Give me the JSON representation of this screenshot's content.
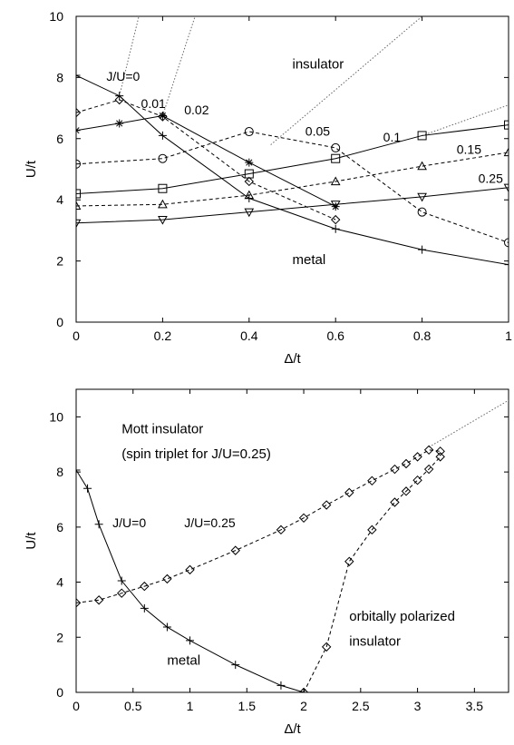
{
  "chart_data": [
    {
      "type": "line",
      "xlabel": "Δ/t",
      "ylabel": "U/t",
      "xlim": [
        0,
        1
      ],
      "ylim": [
        0,
        10
      ],
      "xticks": [
        0,
        0.2,
        0.4,
        0.6,
        0.8,
        1
      ],
      "xtick_labels": [
        "0",
        "0.2",
        "0.4",
        "0.6",
        "0.8",
        "1"
      ],
      "yticks": [
        0,
        2,
        4,
        6,
        8,
        10
      ],
      "ytick_labels": [
        "0",
        "2",
        "4",
        "6",
        "8",
        "10"
      ],
      "grid": false,
      "legend": "none",
      "annotations": [
        {
          "text": "insulator",
          "x": 0.5,
          "y": 8.3
        },
        {
          "text": "metal",
          "x": 0.5,
          "y": 1.9
        }
      ],
      "series": [
        {
          "name": "J/U=0",
          "marker": "plus",
          "dash": "solid",
          "label_x": 0.07,
          "label_y": 7.9,
          "points": [
            [
              0,
              8.07
            ],
            [
              0.1,
              7.4
            ],
            [
              0.2,
              6.1
            ],
            [
              0.4,
              4.05
            ],
            [
              0.6,
              3.05
            ],
            [
              0.8,
              2.37
            ],
            [
              1,
              1.88
            ]
          ]
        },
        {
          "name": "0.01",
          "marker": "diamond",
          "dash": "dashed",
          "label_x": 0.15,
          "label_y": 7.0,
          "points": [
            [
              0,
              6.85
            ],
            [
              0.1,
              7.27
            ],
            [
              0.2,
              6.72
            ],
            [
              0.4,
              4.6
            ],
            [
              0.6,
              3.35
            ]
          ]
        },
        {
          "name": "0.02",
          "marker": "star",
          "dash": "solid",
          "label_x": 0.25,
          "label_y": 6.8,
          "points": [
            [
              0,
              6.27
            ],
            [
              0.1,
              6.5
            ],
            [
              0.2,
              6.75
            ],
            [
              0.4,
              5.22
            ],
            [
              0.6,
              3.78
            ]
          ]
        },
        {
          "name": "0.05",
          "marker": "circle",
          "dash": "dashed",
          "label_x": 0.53,
          "label_y": 6.1,
          "points": [
            [
              0,
              5.17
            ],
            [
              0.2,
              5.35
            ],
            [
              0.4,
              6.23
            ],
            [
              0.6,
              5.7
            ],
            [
              0.8,
              3.6
            ],
            [
              1,
              2.6
            ]
          ]
        },
        {
          "name": "0.1",
          "marker": "square",
          "dash": "solid",
          "label_x": 0.71,
          "label_y": 5.9,
          "points": [
            [
              0,
              4.2
            ],
            [
              0.2,
              4.37
            ],
            [
              0.4,
              4.85
            ],
            [
              0.6,
              5.35
            ],
            [
              0.8,
              6.1
            ],
            [
              1,
              6.45
            ]
          ]
        },
        {
          "name": "0.15",
          "marker": "triangle-up",
          "dash": "dashed",
          "label_x": 0.88,
          "label_y": 5.5,
          "points": [
            [
              0,
              3.8
            ],
            [
              0.2,
              3.85
            ],
            [
              0.4,
              4.15
            ],
            [
              0.6,
              4.6
            ],
            [
              0.8,
              5.1
            ],
            [
              1,
              5.55
            ]
          ]
        },
        {
          "name": "0.25",
          "marker": "triangle-down",
          "dash": "solid",
          "label_x": 0.93,
          "label_y": 4.55,
          "points": [
            [
              0,
              3.24
            ],
            [
              0.2,
              3.35
            ],
            [
              0.4,
              3.6
            ],
            [
              0.6,
              3.85
            ],
            [
              0.8,
              4.1
            ],
            [
              1,
              4.4
            ]
          ]
        }
      ],
      "boundaries": [
        {
          "style": "dotted",
          "points": [
            [
              0.1,
              7.4
            ],
            [
              0.145,
              10
            ]
          ]
        },
        {
          "style": "dotted",
          "points": [
            [
              0.2,
              6.75
            ],
            [
              0.275,
              10
            ]
          ]
        },
        {
          "style": "dotted",
          "points": [
            [
              0.45,
              5.8
            ],
            [
              0.8,
              10
            ]
          ]
        },
        {
          "style": "dotted",
          "points": [
            [
              0.8,
              6.1
            ],
            [
              1,
              7.1
            ]
          ]
        }
      ]
    },
    {
      "type": "line",
      "xlabel": "Δ/t",
      "ylabel": "U/t",
      "xlim": [
        0,
        3.8
      ],
      "ylim": [
        0,
        11
      ],
      "xticks": [
        0,
        0.5,
        1,
        1.5,
        2,
        2.5,
        3,
        3.5
      ],
      "xtick_labels": [
        "0",
        "0.5",
        "1",
        "1.5",
        "2",
        "2.5",
        "3",
        "3.5"
      ],
      "yticks": [
        0,
        2,
        4,
        6,
        8,
        10
      ],
      "ytick_labels": [
        "0",
        "2",
        "4",
        "6",
        "8",
        "10"
      ],
      "grid": false,
      "legend": "none",
      "annotations": [
        {
          "text": "Mott insulator",
          "x": 0.4,
          "y": 9.4
        },
        {
          "text": "(spin triplet for J/U=0.25)",
          "x": 0.4,
          "y": 8.5
        },
        {
          "text": "metal",
          "x": 0.8,
          "y": 1.0
        },
        {
          "text": "orbitally polarized",
          "x": 2.4,
          "y": 2.6
        },
        {
          "text": "insulator",
          "x": 2.4,
          "y": 1.7
        }
      ],
      "series": [
        {
          "name": "J/U=0",
          "marker": "plus",
          "dash": "solid",
          "label_x": 0.32,
          "label_y": 6.0,
          "points": [
            [
              0,
              8.07
            ],
            [
              0.1,
              7.4
            ],
            [
              0.2,
              6.1
            ],
            [
              0.4,
              4.05
            ],
            [
              0.6,
              3.05
            ],
            [
              0.8,
              2.37
            ],
            [
              1,
              1.88
            ],
            [
              1.4,
              1.0
            ],
            [
              1.8,
              0.25
            ],
            [
              2,
              0
            ]
          ]
        },
        {
          "name": "J/U=0.25",
          "marker": "diamond",
          "dash": "dashed",
          "label_x": 0.95,
          "label_y": 6.0,
          "points": [
            [
              0,
              3.25
            ],
            [
              0.2,
              3.35
            ],
            [
              0.4,
              3.6
            ],
            [
              0.6,
              3.85
            ],
            [
              0.8,
              4.12
            ],
            [
              1,
              4.45
            ],
            [
              1.4,
              5.15
            ],
            [
              1.8,
              5.9
            ],
            [
              2,
              6.33
            ],
            [
              2.2,
              6.8
            ],
            [
              2.4,
              7.25
            ],
            [
              2.6,
              7.68
            ],
            [
              2.8,
              8.1
            ],
            [
              2.9,
              8.3
            ],
            [
              3,
              8.55
            ],
            [
              3.1,
              8.8
            ],
            [
              3.2,
              8.75
            ]
          ]
        },
        {
          "name": "",
          "marker": "diamond",
          "dash": "dashed",
          "points": [
            [
              2,
              0
            ],
            [
              2.2,
              1.65
            ],
            [
              2.4,
              4.75
            ],
            [
              2.6,
              5.9
            ],
            [
              2.8,
              6.9
            ],
            [
              2.9,
              7.3
            ],
            [
              3,
              7.7
            ],
            [
              3.1,
              8.1
            ],
            [
              3.2,
              8.55
            ]
          ]
        }
      ],
      "boundaries": [
        {
          "style": "dotted",
          "points": [
            [
              3.1,
              8.9
            ],
            [
              3.8,
              10.6
            ]
          ]
        }
      ]
    }
  ]
}
